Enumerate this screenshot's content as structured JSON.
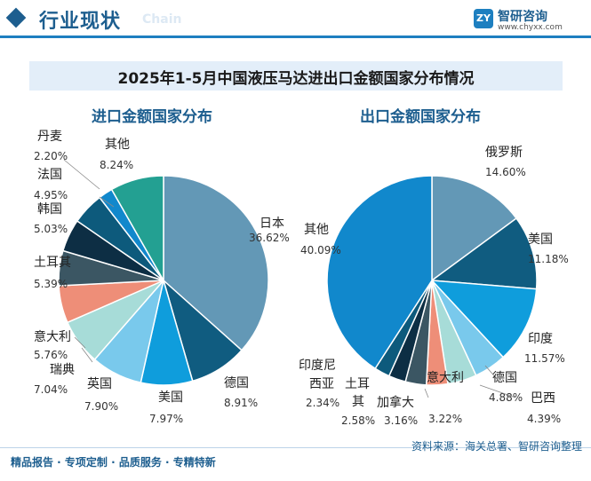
{
  "header": {
    "title": "行业现状",
    "watermark_text": "Chain"
  },
  "logo": {
    "name": "智研咨询",
    "url": "www.chyxx.com"
  },
  "footer": {
    "tagline": "精品报告 · 专项定制 · 品质服务 · 专精特新",
    "source": "资料来源：海关总署、智研咨询整理"
  },
  "chart_data": [
    {
      "type": "pie",
      "title": "2025年1-5月中国液压马达进出口金额国家分布情况",
      "subtitle": "进口金额国家分布",
      "slices": [
        {
          "name": "日本",
          "value": 36.62,
          "label": "36.62%",
          "color": "#6398b6"
        },
        {
          "name": "德国",
          "value": 8.91,
          "label": "8.91%",
          "color": "#105c80"
        },
        {
          "name": "美国",
          "value": 7.97,
          "label": "7.97%",
          "color": "#0f9ddc"
        },
        {
          "name": "英国",
          "value": 7.9,
          "label": "7.90%",
          "color": "#79c9ec"
        },
        {
          "name": "瑞典",
          "value": 7.04,
          "label": "7.04%",
          "color": "#a7dcd8"
        },
        {
          "name": "意大利",
          "value": 5.76,
          "label": "5.76%",
          "color": "#ee8e78"
        },
        {
          "name": "土耳其",
          "value": 5.39,
          "label": "5.39%",
          "color": "#3b5663"
        },
        {
          "name": "韩国",
          "value": 5.03,
          "label": "5.03%",
          "color": "#0d2e44"
        },
        {
          "name": "法国",
          "value": 4.95,
          "label": "4.95%",
          "color": "#0d5a7c"
        },
        {
          "name": "丹麦",
          "value": 2.2,
          "label": "2.20%",
          "color": "#1188cc"
        },
        {
          "name": "其他",
          "value": 8.24,
          "label": "8.24%",
          "color": "#23a092"
        }
      ]
    },
    {
      "type": "pie",
      "subtitle": "出口金额国家分布",
      "slices": [
        {
          "name": "俄罗斯",
          "value": 14.6,
          "label": "14.60%",
          "color": "#6398b6"
        },
        {
          "name": "美国",
          "value": 11.18,
          "label": "11.18%",
          "color": "#105c80"
        },
        {
          "name": "印度",
          "value": 11.57,
          "label": "11.57%",
          "color": "#0f9ddc"
        },
        {
          "name": "德国",
          "value": 4.88,
          "label": "4.88%",
          "color": "#79c9ec"
        },
        {
          "name": "巴西",
          "value": 4.39,
          "label": "4.39%",
          "color": "#a7dcd8"
        },
        {
          "name": "意大利",
          "value": 3.22,
          "label": "3.22%",
          "color": "#ee8e78"
        },
        {
          "name": "加拿大",
          "value": 3.16,
          "label": "3.16%",
          "color": "#3b5663"
        },
        {
          "name": "土耳其",
          "value": 2.58,
          "label": "2.58%",
          "color": "#0d2e44"
        },
        {
          "name": "印度尼西亚",
          "value": 2.34,
          "label": "2.34%",
          "color": "#0d5a7c"
        },
        {
          "name": "其他",
          "value": 40.09,
          "label": "40.09%",
          "color": "#1188cc"
        }
      ]
    }
  ]
}
